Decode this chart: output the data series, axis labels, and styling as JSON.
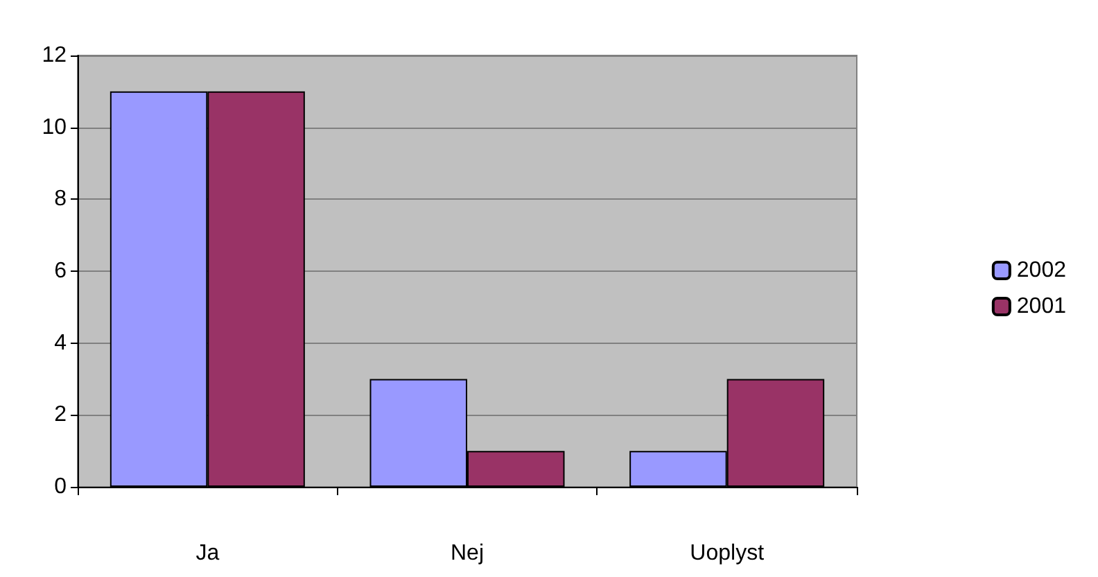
{
  "chart_data": {
    "type": "bar",
    "categories": [
      "Ja",
      "Nej",
      "Uoplyst"
    ],
    "series": [
      {
        "name": "2002",
        "color": "#9999ff",
        "values": [
          11,
          3,
          1
        ]
      },
      {
        "name": "2001",
        "color": "#993366",
        "values": [
          11,
          1,
          3
        ]
      }
    ],
    "ylim": [
      0,
      12
    ],
    "yticks": [
      0,
      2,
      4,
      6,
      8,
      10,
      12
    ],
    "grid": "y",
    "legend": "right"
  }
}
